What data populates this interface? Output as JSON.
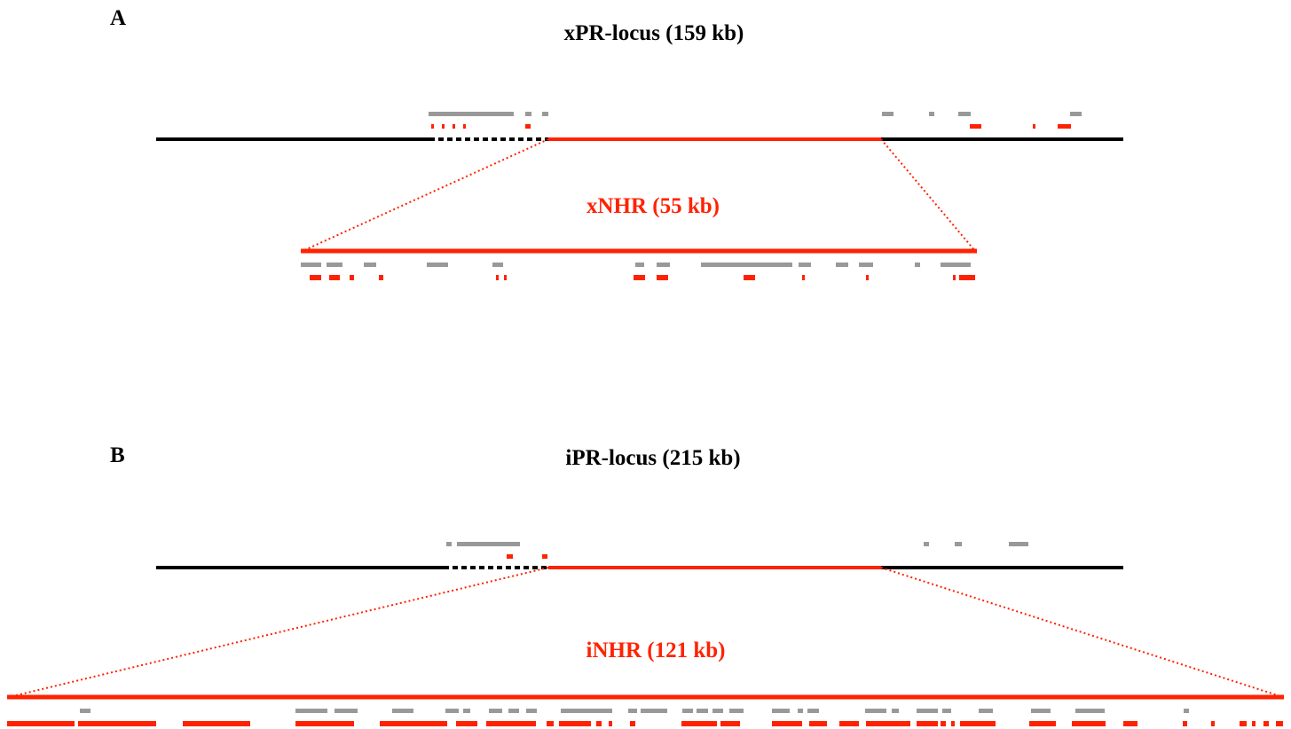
{
  "panel_a": {
    "letter": "A",
    "locus_title": "xPR-locus (159 kb)",
    "nhr_title": "xNHR (55 kb)"
  },
  "panel_b": {
    "letter": "B",
    "locus_title": "iPR-locus (215 kb)",
    "nhr_title": "iNHR (121 kb)"
  },
  "colors": {
    "locus_line": "#000000",
    "nhr_red": "#ff2200",
    "feature_grey": "#999999"
  }
}
